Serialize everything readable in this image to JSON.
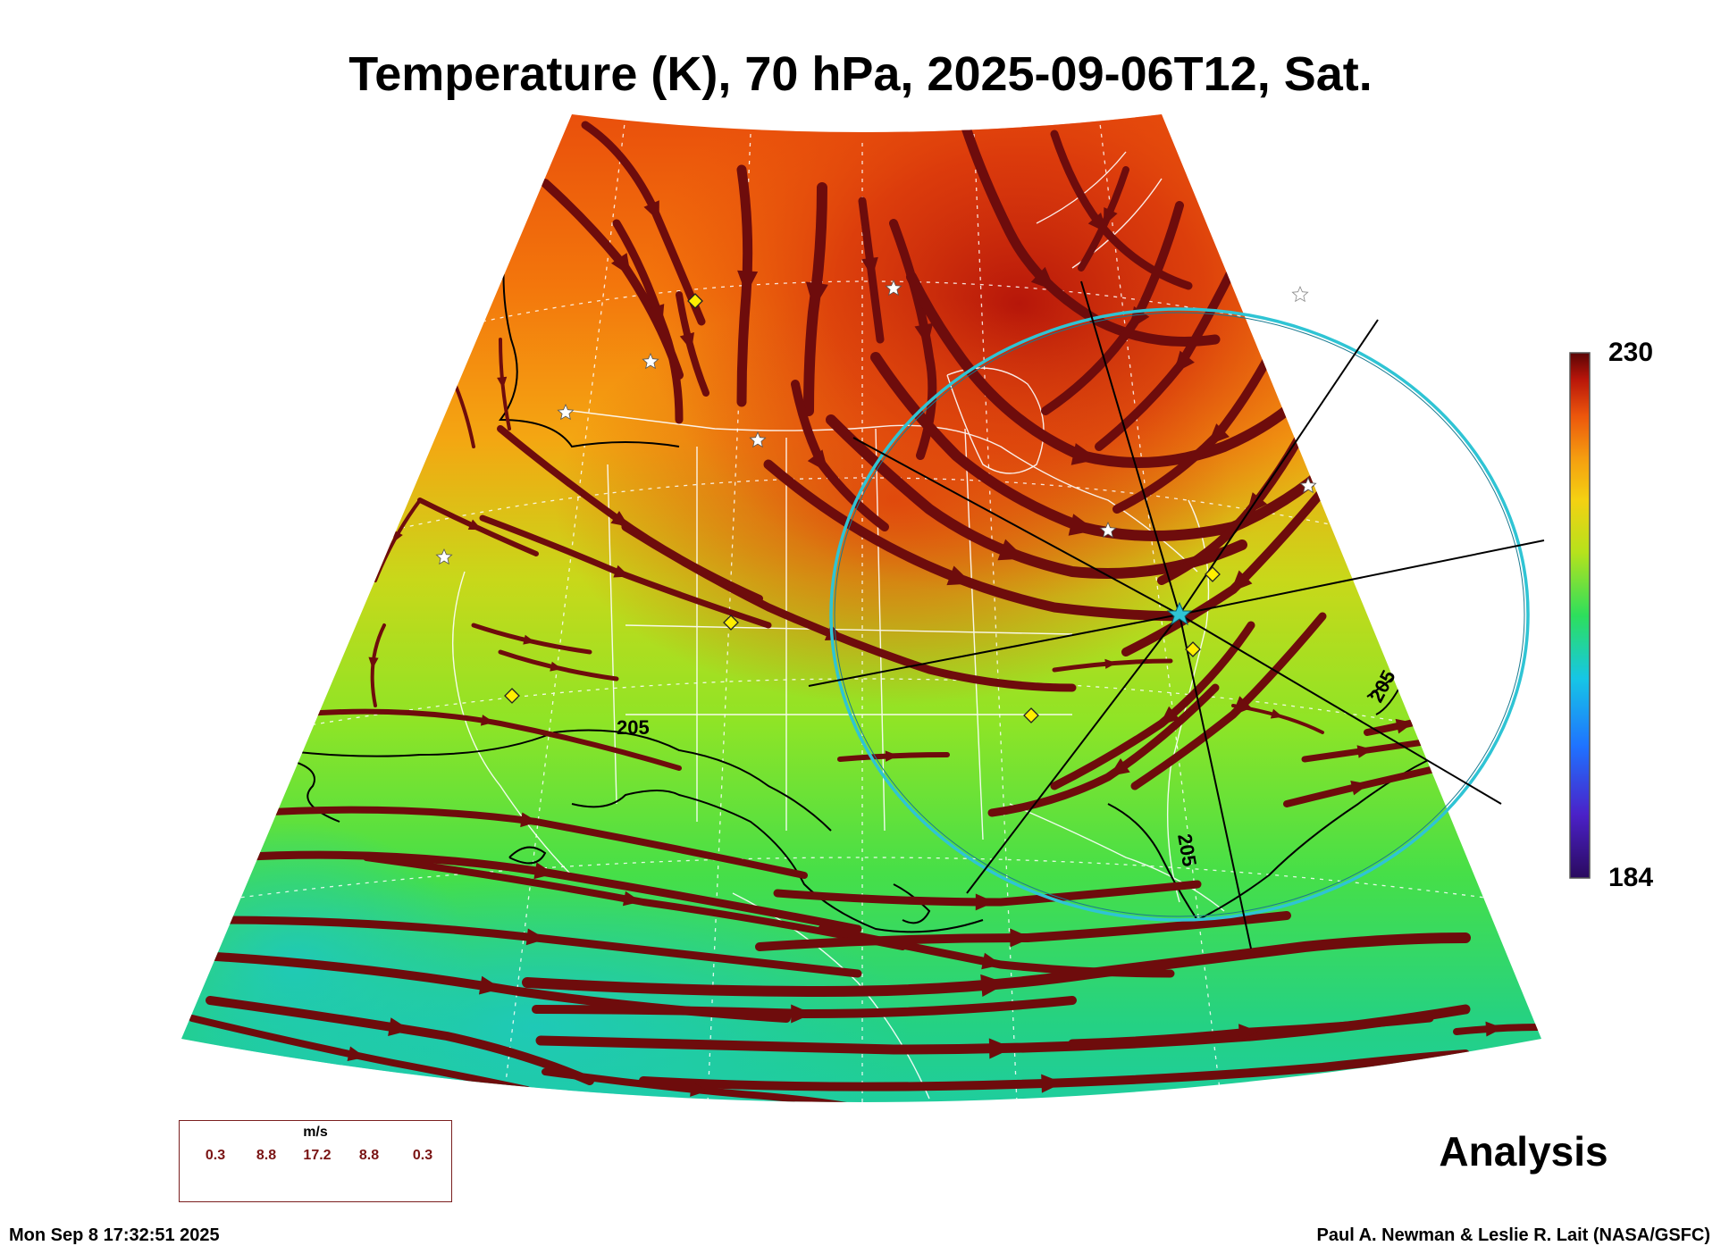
{
  "title": "Temperature (K), 70 hPa, 2025-09-06T12, Sat.",
  "analysis_label": "Analysis",
  "timestamp": "Mon Sep  8 17:32:51 2025",
  "credit": "Paul A. Newman & Leslie R. Lait (NASA/GSFC)",
  "colorbar": {
    "max_label": "230",
    "min_label": "184",
    "max": 230,
    "min": 184
  },
  "contour_labels": [
    "205",
    "205",
    "205"
  ],
  "legend": {
    "unit": "m/s",
    "values": [
      "0.3",
      "8.8",
      "17.2",
      "8.8",
      "0.3"
    ]
  },
  "colors": {
    "stream": "#6e0c0c",
    "circle": "#2fc4d4",
    "marker_fill": "#ffee00",
    "hot": "#c21f0b",
    "cool": "#22d0b0"
  }
}
